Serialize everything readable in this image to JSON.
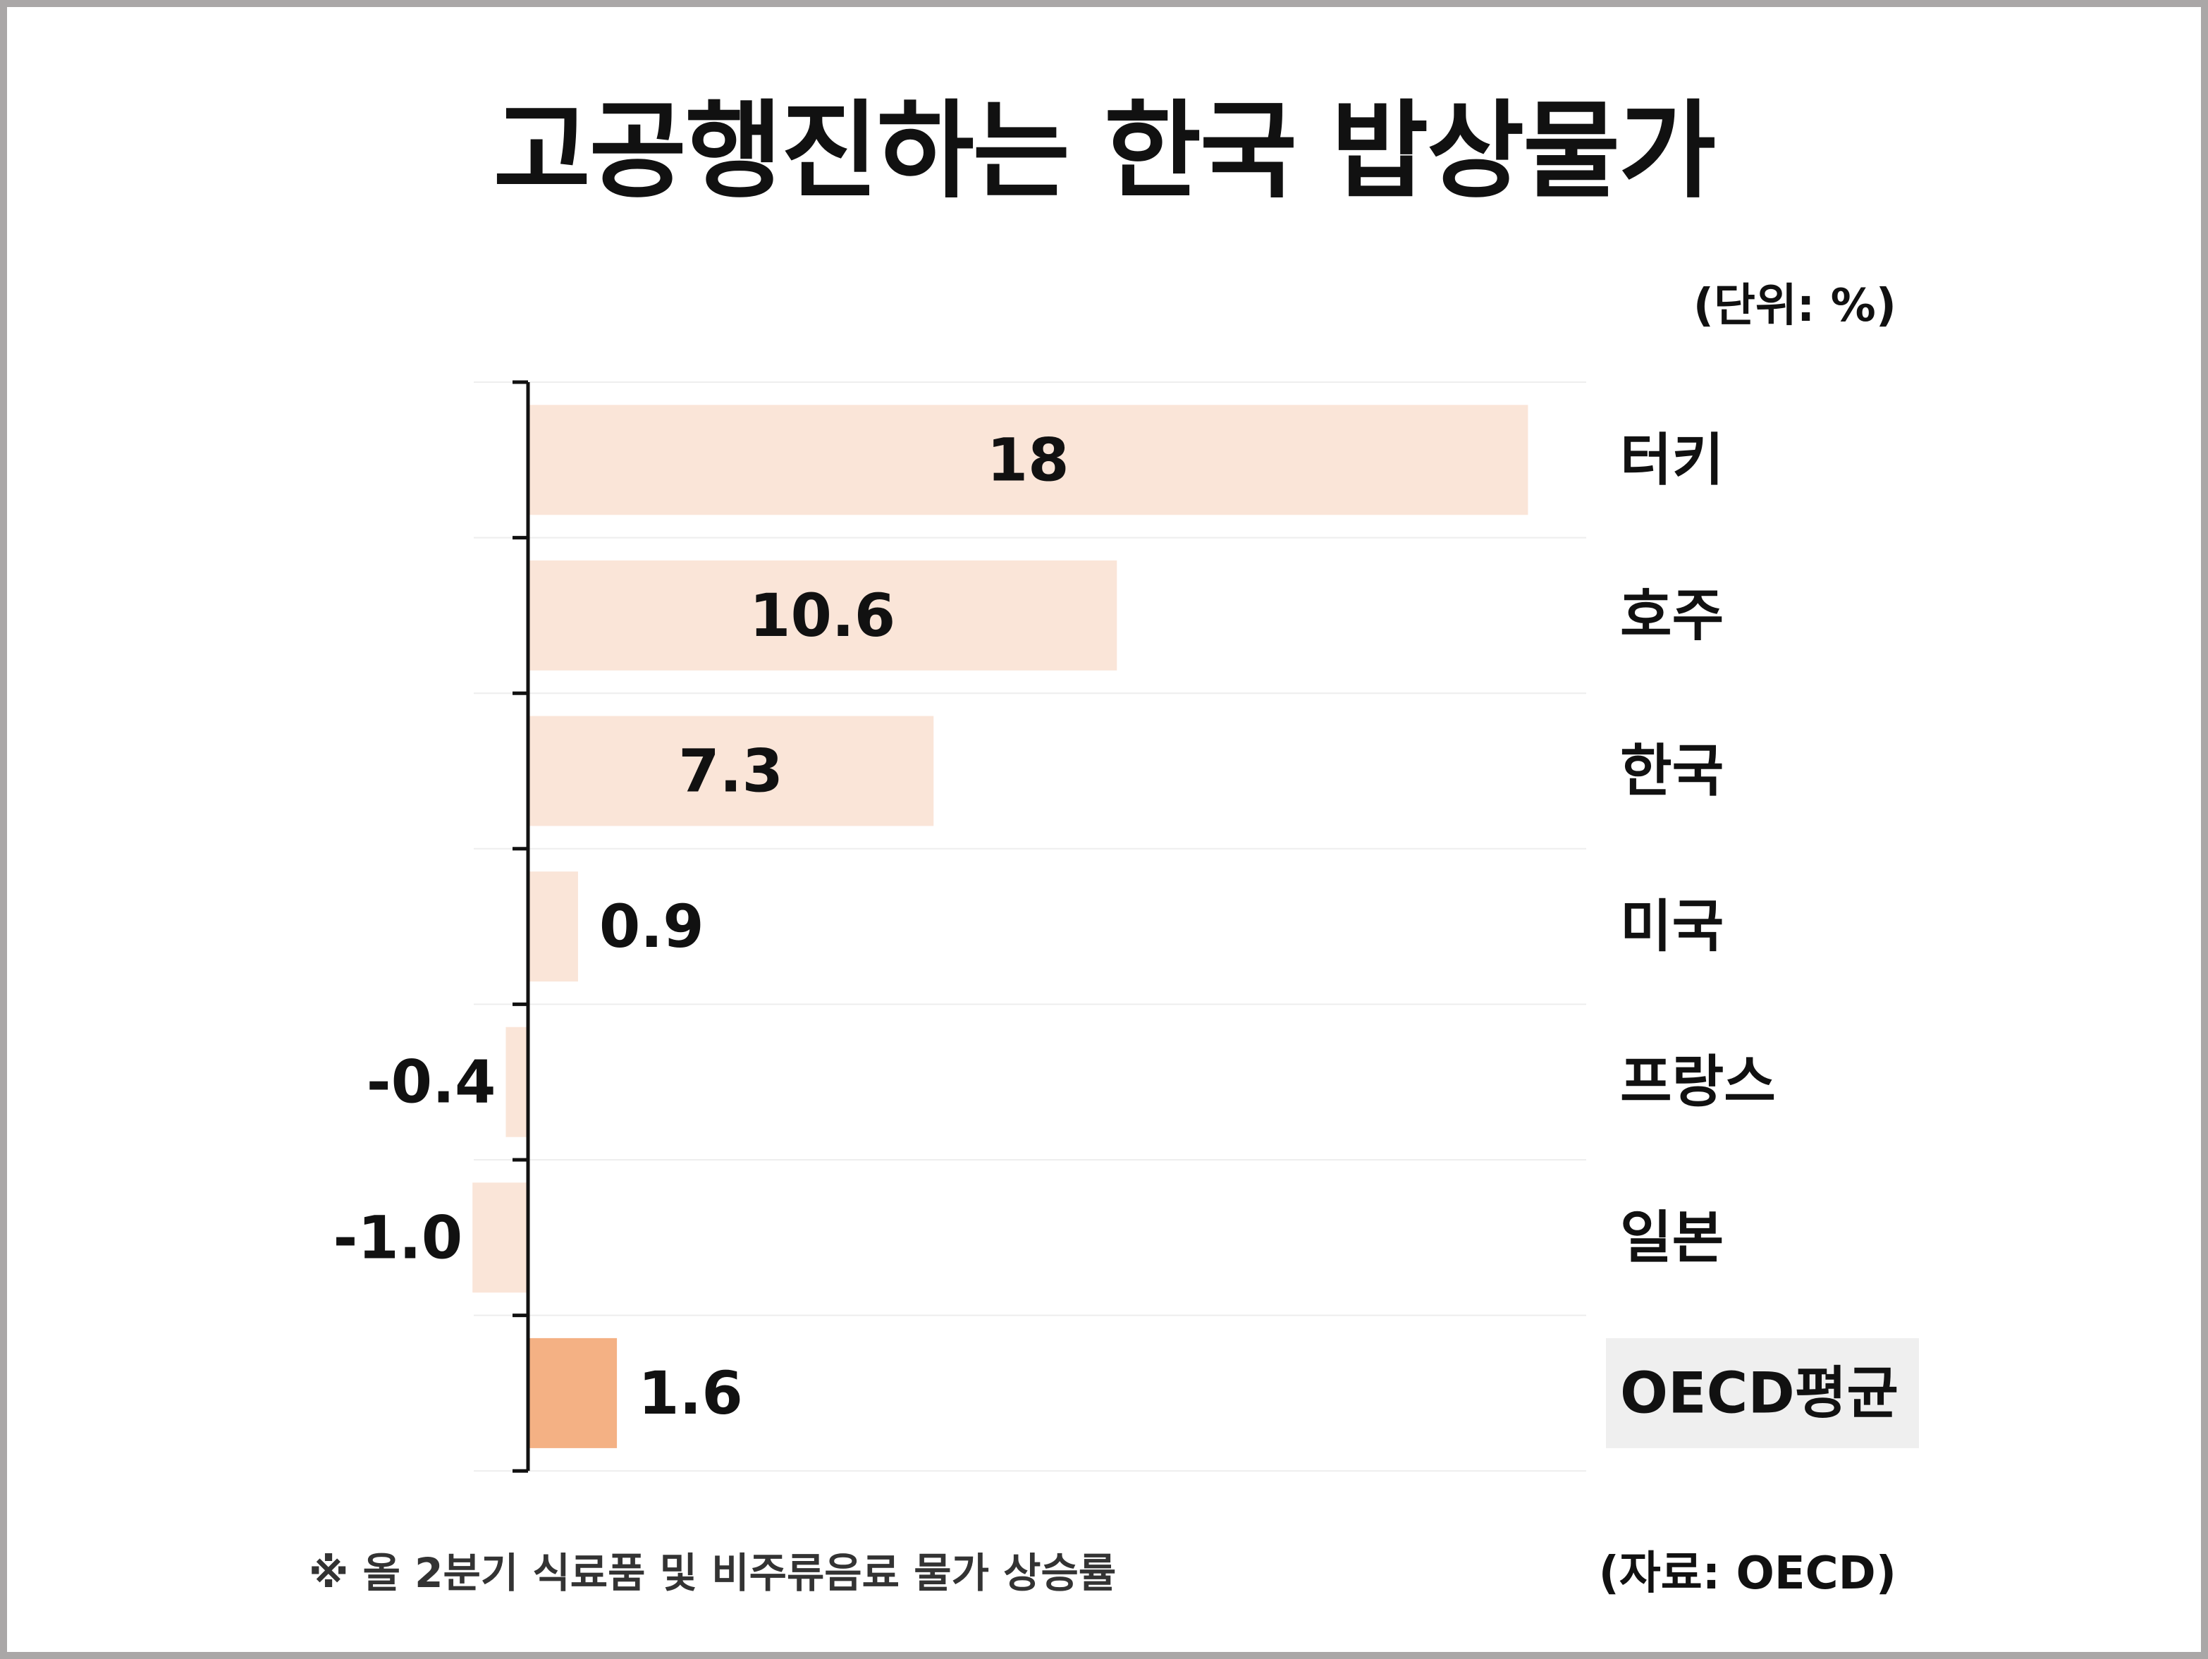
{
  "chart_data": {
    "type": "bar",
    "orientation": "horizontal",
    "title": "고공행진하는 한국 밥상물가",
    "unit_label": "(단위: %)",
    "categories": [
      "터키",
      "호주",
      "한국",
      "미국",
      "프랑스",
      "일본",
      "OECD평균"
    ],
    "values": [
      18,
      10.6,
      7.3,
      0.9,
      -0.4,
      -1.0,
      1.6
    ],
    "value_labels": [
      "18",
      "10.6",
      "7.3",
      "0.9",
      "-0.4",
      "-1.0",
      "1.6"
    ],
    "xlim": [
      -1.0,
      18.0
    ],
    "highlight_category": "OECD평균",
    "colors": {
      "bar": "#fae5d8",
      "highlight_bar": "#f4b184",
      "highlight_label_bg": "#efefef",
      "axis": "#111111",
      "grid": "#eeeeee",
      "frame": "#aaa7a7"
    },
    "grid": true,
    "footnote": "※ 올 2분기 식료품 및 비주류음료 물가 상승률",
    "source": "(자료: OECD)"
  }
}
